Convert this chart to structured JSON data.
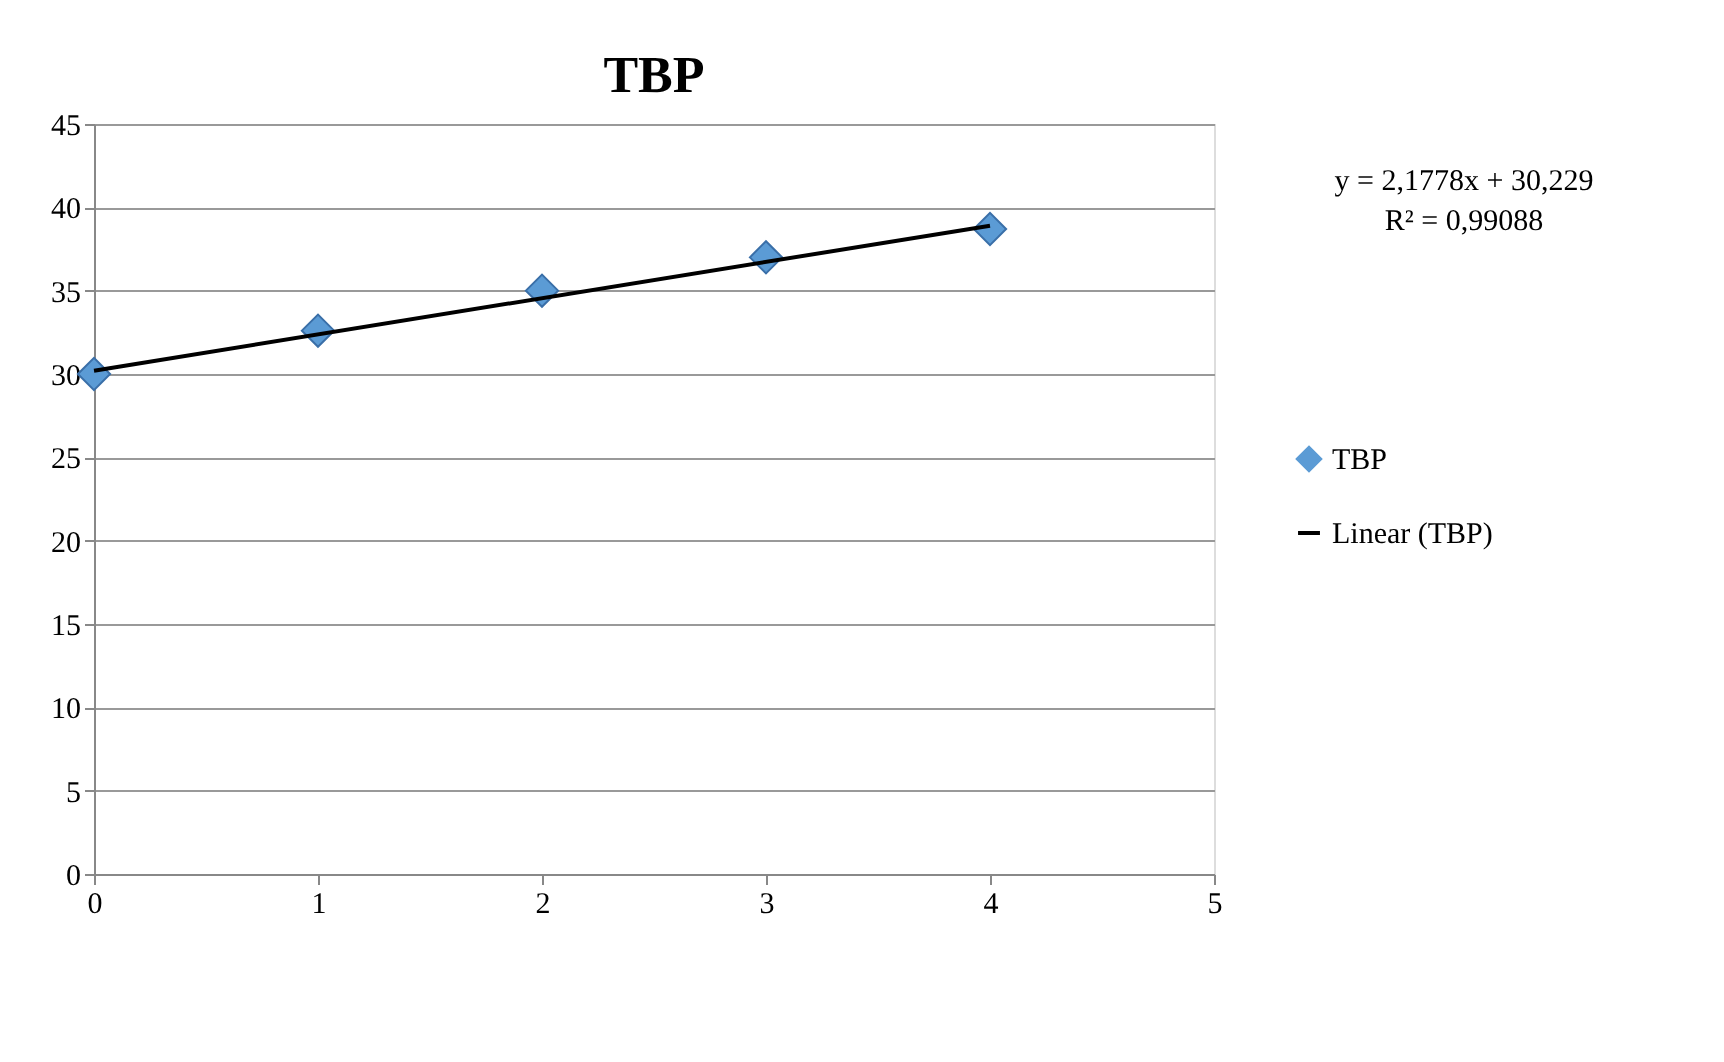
{
  "chart_data": {
    "type": "scatter",
    "title": "TBP",
    "x": [
      0,
      1,
      2,
      3,
      4
    ],
    "series": [
      {
        "name": "TBP",
        "color": "#5b9bd5",
        "marker": "diamond",
        "values": [
          30,
          32.6,
          35,
          37,
          38.7
        ]
      },
      {
        "name": "Linear (TBP)",
        "type": "line",
        "color": "#000000",
        "line_style": "solid",
        "x": [
          0,
          4
        ],
        "values": [
          30.2,
          38.9
        ]
      }
    ],
    "xlim": [
      0,
      5
    ],
    "xticks": [
      0,
      1,
      2,
      3,
      4,
      5
    ],
    "ylim": [
      0,
      45
    ],
    "yticks": [
      0,
      5,
      10,
      15,
      20,
      25,
      30,
      35,
      40,
      45
    ],
    "grid": "y",
    "legend": "right",
    "annotations": [
      "y = 2,1778x + 30,229",
      "R² = 0,99088"
    ]
  }
}
